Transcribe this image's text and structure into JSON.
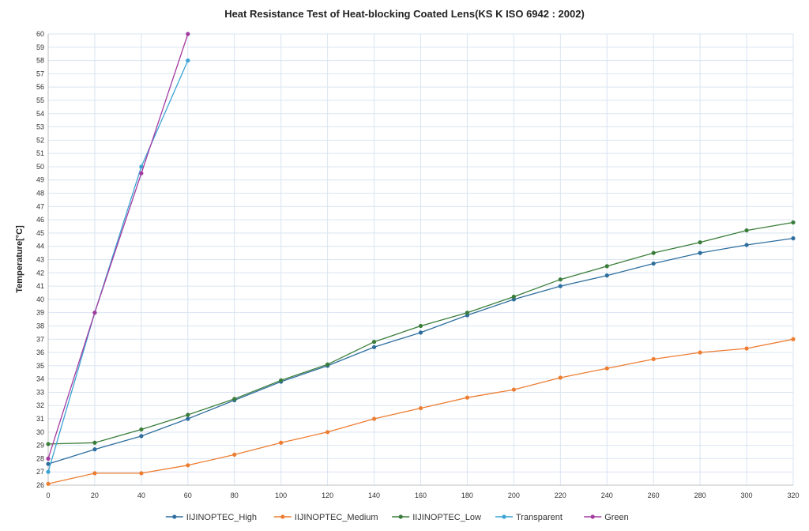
{
  "chart_data": {
    "type": "line",
    "title": "Heat Resistance Test of Heat-blocking Coated Lens(KS K ISO 6942 : 2002)",
    "xlabel": "",
    "ylabel": "Temperature[°C]",
    "xlim": [
      0,
      320
    ],
    "ylim": [
      26,
      60
    ],
    "x_ticks": [
      0,
      20,
      40,
      60,
      80,
      100,
      120,
      140,
      160,
      180,
      200,
      220,
      240,
      260,
      280,
      300,
      320
    ],
    "y_ticks": [
      26,
      27,
      28,
      29,
      30,
      31,
      32,
      33,
      34,
      35,
      36,
      37,
      38,
      39,
      40,
      41,
      42,
      43,
      44,
      45,
      46,
      47,
      48,
      49,
      50,
      51,
      52,
      53,
      54,
      55,
      56,
      57,
      58,
      59,
      60
    ],
    "grid": true,
    "legend_position": "bottom",
    "series": [
      {
        "name": "IIJINOPTEC_High",
        "color": "#2e6e9e",
        "x": [
          0,
          20,
          40,
          60,
          80,
          100,
          120,
          140,
          160,
          180,
          200,
          220,
          240,
          260,
          280,
          300,
          320
        ],
        "y": [
          27.6,
          28.7,
          29.7,
          31.0,
          32.4,
          33.8,
          35.0,
          36.4,
          37.5,
          38.8,
          40.0,
          41.0,
          41.8,
          42.7,
          43.5,
          44.1,
          44.6
        ]
      },
      {
        "name": "IIJINOPTEC_Medium",
        "color": "#ed7d31",
        "x": [
          0,
          20,
          40,
          60,
          80,
          100,
          120,
          140,
          160,
          180,
          200,
          220,
          240,
          260,
          280,
          300,
          320
        ],
        "y": [
          26.1,
          26.9,
          26.9,
          27.5,
          28.3,
          29.2,
          30.0,
          31.0,
          31.8,
          32.6,
          33.2,
          34.1,
          34.8,
          35.5,
          36.0,
          36.3,
          37.0
        ]
      },
      {
        "name": "IIJINOPTEC_Low",
        "color": "#3a7d3a",
        "x": [
          0,
          20,
          40,
          60,
          80,
          100,
          120,
          140,
          160,
          180,
          200,
          220,
          240,
          260,
          280,
          300,
          320
        ],
        "y": [
          29.1,
          29.2,
          30.2,
          31.3,
          32.5,
          33.9,
          35.1,
          36.8,
          38.0,
          39.0,
          40.2,
          41.5,
          42.5,
          43.5,
          44.3,
          45.2,
          45.8
        ]
      },
      {
        "name": "Transparent",
        "color": "#3ba3d4",
        "x": [
          0,
          20,
          40,
          60
        ],
        "y": [
          27.0,
          39.0,
          50.0,
          58.0
        ]
      },
      {
        "name": "Green",
        "color": "#a23ba0",
        "x": [
          0,
          20,
          40,
          60
        ],
        "y": [
          28.0,
          39.0,
          49.5,
          60.0
        ]
      }
    ]
  }
}
